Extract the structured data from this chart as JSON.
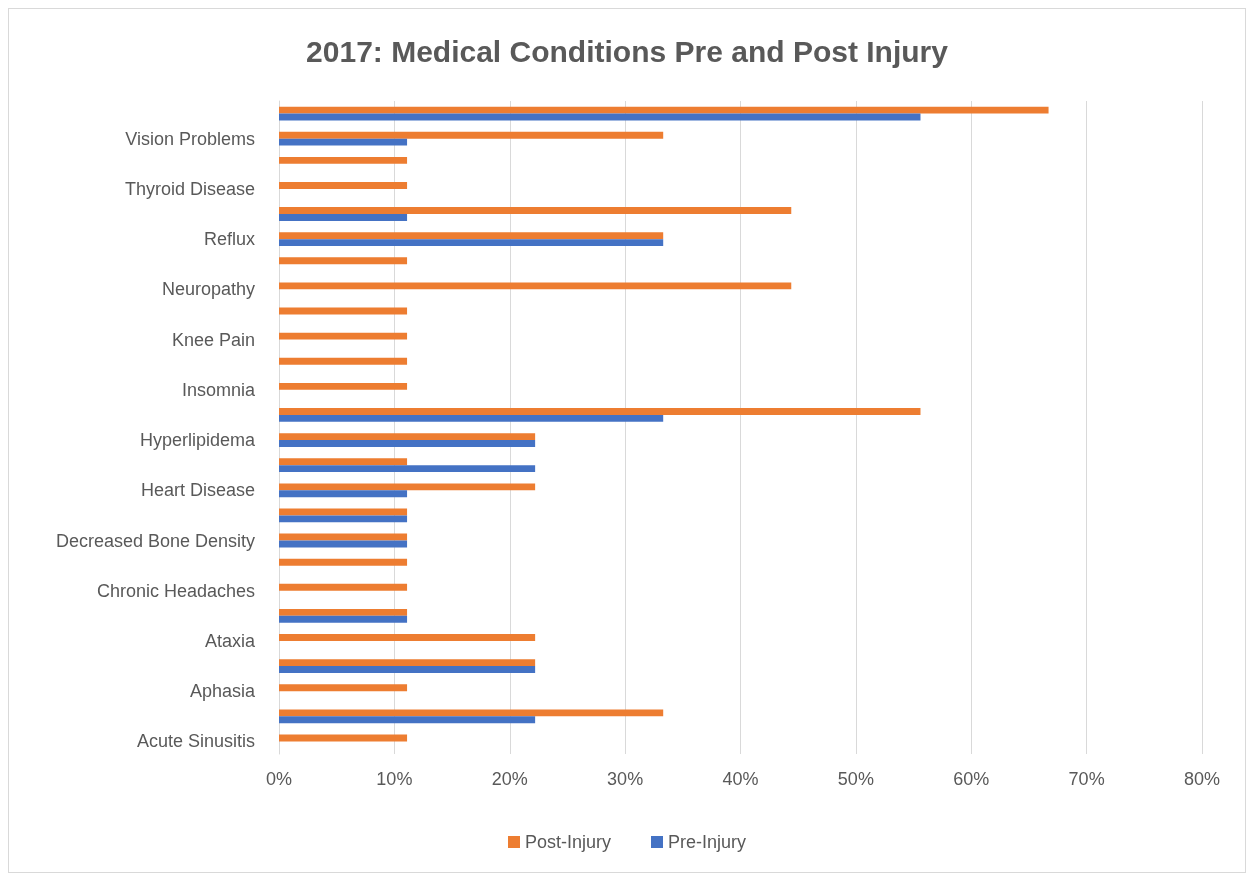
{
  "chart_data": {
    "type": "bar",
    "orientation": "horizontal",
    "title": "2017: Medical Conditions Pre and Post Injury",
    "categories": [
      null,
      "Vision Problems",
      null,
      "Thyroid Disease",
      null,
      "Reflux",
      null,
      "Neuropathy",
      null,
      "Knee Pain",
      null,
      "Insomnia",
      null,
      "Hyperlipidema",
      null,
      "Heart Disease",
      null,
      "Decreased Bone Density",
      null,
      "Chronic Headaches",
      null,
      "Ataxia",
      null,
      "Aphasia",
      null,
      "Acute Sinusitis"
    ],
    "series": [
      {
        "name": "Post-Injury",
        "color": "#ed7d31",
        "values": [
          66.7,
          33.3,
          11.1,
          11.1,
          44.4,
          33.3,
          11.1,
          44.4,
          11.1,
          11.1,
          11.1,
          11.1,
          55.6,
          22.2,
          11.1,
          22.2,
          11.1,
          11.1,
          11.1,
          11.1,
          11.1,
          22.2,
          22.2,
          11.1,
          33.3,
          11.1
        ]
      },
      {
        "name": "Pre-Injury",
        "color": "#4472c4",
        "values": [
          55.6,
          11.1,
          null,
          null,
          11.1,
          33.3,
          null,
          null,
          null,
          null,
          null,
          null,
          33.3,
          22.2,
          22.2,
          11.1,
          11.1,
          11.1,
          null,
          null,
          11.1,
          null,
          22.2,
          null,
          22.2,
          null
        ]
      }
    ],
    "xlim": [
      0,
      80
    ],
    "xticks": [
      {
        "value": 0,
        "label": "0%"
      },
      {
        "value": 10,
        "label": "10%"
      },
      {
        "value": 20,
        "label": "20%"
      },
      {
        "value": 30,
        "label": "30%"
      },
      {
        "value": 40,
        "label": "40%"
      },
      {
        "value": 50,
        "label": "50%"
      },
      {
        "value": 60,
        "label": "60%"
      },
      {
        "value": 70,
        "label": "70%"
      },
      {
        "value": 80,
        "label": "80%"
      }
    ],
    "grid": "x",
    "legend": "bottom"
  }
}
